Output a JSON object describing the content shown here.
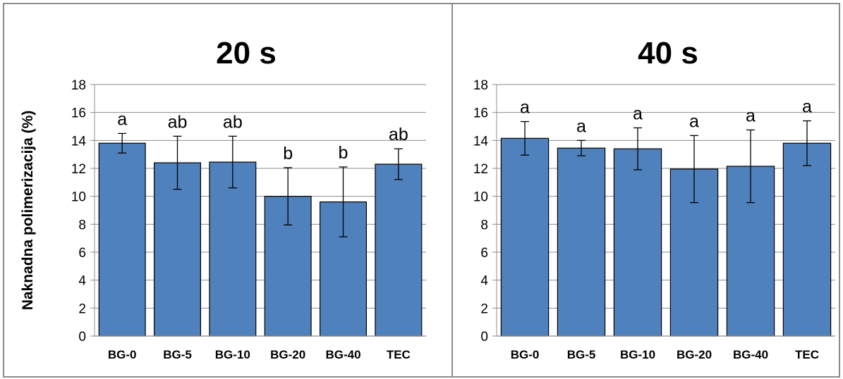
{
  "chart_data": [
    {
      "type": "bar",
      "title": "20 s",
      "ylabel": "Naknadna polimerizacija (%)",
      "xlabel": "",
      "ylim": [
        0,
        18
      ],
      "yticks": [
        0,
        2,
        4,
        6,
        8,
        10,
        12,
        14,
        16,
        18
      ],
      "grid": true,
      "categories": [
        "BG-0",
        "BG-5",
        "BG-10",
        "BG-20",
        "BG-40",
        "TEC"
      ],
      "values": [
        13.8,
        12.4,
        12.45,
        10.0,
        9.6,
        12.3
      ],
      "error": [
        0.7,
        1.9,
        1.85,
        2.05,
        2.5,
        1.1
      ],
      "labels": [
        "a",
        "ab",
        "ab",
        "b",
        "b",
        "ab"
      ],
      "bar_color": "#4f81bd"
    },
    {
      "type": "bar",
      "title": "40 s",
      "ylabel": "",
      "xlabel": "",
      "ylim": [
        0,
        18
      ],
      "yticks": [
        0,
        2,
        4,
        6,
        8,
        10,
        12,
        14,
        16,
        18
      ],
      "grid": true,
      "categories": [
        "BG-0",
        "BG-5",
        "BG-10",
        "BG-20",
        "BG-40",
        "TEC"
      ],
      "values": [
        14.15,
        13.45,
        13.4,
        11.95,
        12.15,
        13.8
      ],
      "error": [
        1.2,
        0.55,
        1.5,
        2.4,
        2.6,
        1.6
      ],
      "labels": [
        "a",
        "a",
        "a",
        "a",
        "a",
        "a"
      ],
      "bar_color": "#4f81bd"
    }
  ]
}
